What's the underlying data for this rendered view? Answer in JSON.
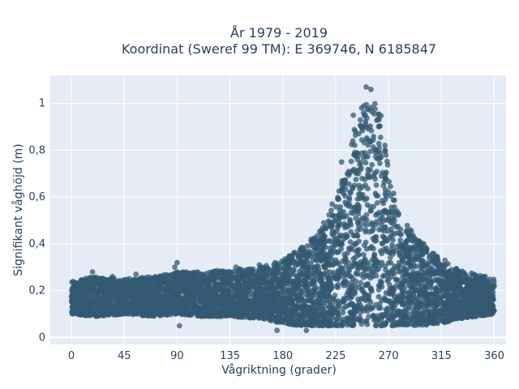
{
  "chart_data": {
    "type": "scatter",
    "title": "År 1979 - 2019",
    "subtitle": "Koordinat (Sweref 99 TM): E 369746, N 6185847",
    "xlabel": "Vågriktning (grader)",
    "ylabel": "Signifikant våghöjd (m)",
    "xlim": [
      -18,
      370
    ],
    "ylim": [
      -0.03,
      1.12
    ],
    "xticks": [
      0,
      45,
      90,
      135,
      180,
      225,
      270,
      315,
      360
    ],
    "xtick_labels": [
      "0",
      "45",
      "90",
      "135",
      "180",
      "225",
      "270",
      "315",
      "360"
    ],
    "yticks": [
      0,
      0.2,
      0.4,
      0.6,
      0.8,
      1
    ],
    "ytick_labels": [
      "0",
      "0,2",
      "0,4",
      "0,6",
      "0,8",
      "1"
    ],
    "grid": true,
    "legend": "none",
    "colors": {
      "marker": "#335a72",
      "plot_bg": "#e5ecf6",
      "grid": "#ffffff",
      "text": "#2a3f5f"
    },
    "density_profile": [
      {
        "x": 0,
        "low": 0.1,
        "high": 0.24
      },
      {
        "x": 20,
        "low": 0.09,
        "high": 0.26
      },
      {
        "x": 45,
        "low": 0.1,
        "high": 0.25
      },
      {
        "x": 70,
        "low": 0.09,
        "high": 0.26
      },
      {
        "x": 90,
        "low": 0.1,
        "high": 0.28
      },
      {
        "x": 110,
        "low": 0.09,
        "high": 0.28
      },
      {
        "x": 135,
        "low": 0.09,
        "high": 0.29
      },
      {
        "x": 160,
        "low": 0.08,
        "high": 0.3
      },
      {
        "x": 180,
        "low": 0.06,
        "high": 0.33
      },
      {
        "x": 195,
        "low": 0.05,
        "high": 0.38
      },
      {
        "x": 210,
        "low": 0.05,
        "high": 0.45
      },
      {
        "x": 225,
        "low": 0.05,
        "high": 0.58
      },
      {
        "x": 235,
        "low": 0.05,
        "high": 0.76
      },
      {
        "x": 245,
        "low": 0.05,
        "high": 0.98
      },
      {
        "x": 255,
        "low": 0.05,
        "high": 1.05
      },
      {
        "x": 265,
        "low": 0.05,
        "high": 0.93
      },
      {
        "x": 272,
        "low": 0.05,
        "high": 0.66
      },
      {
        "x": 280,
        "low": 0.05,
        "high": 0.52
      },
      {
        "x": 295,
        "low": 0.05,
        "high": 0.42
      },
      {
        "x": 315,
        "low": 0.06,
        "high": 0.33
      },
      {
        "x": 330,
        "low": 0.08,
        "high": 0.29
      },
      {
        "x": 345,
        "low": 0.09,
        "high": 0.27
      },
      {
        "x": 360,
        "low": 0.1,
        "high": 0.25
      }
    ],
    "outliers": [
      {
        "x": 90,
        "y": 0.32
      },
      {
        "x": 88,
        "y": 0.3
      },
      {
        "x": 18,
        "y": 0.28
      },
      {
        "x": 35,
        "y": 0.26
      },
      {
        "x": 55,
        "y": 0.27
      },
      {
        "x": 92,
        "y": 0.05
      },
      {
        "x": 175,
        "y": 0.03
      },
      {
        "x": 200,
        "y": 0.03
      },
      {
        "x": 222,
        "y": 0.57
      },
      {
        "x": 293,
        "y": 0.42
      },
      {
        "x": 300,
        "y": 0.4
      },
      {
        "x": 310,
        "y": 0.34
      },
      {
        "x": 318,
        "y": 0.33
      },
      {
        "x": 251,
        "y": 1.07
      },
      {
        "x": 255,
        "y": 1.06
      },
      {
        "x": 240,
        "y": 0.95
      },
      {
        "x": 230,
        "y": 0.75
      },
      {
        "x": 285,
        "y": 0.45
      },
      {
        "x": 140,
        "y": 0.3
      },
      {
        "x": 160,
        "y": 0.31
      }
    ]
  }
}
